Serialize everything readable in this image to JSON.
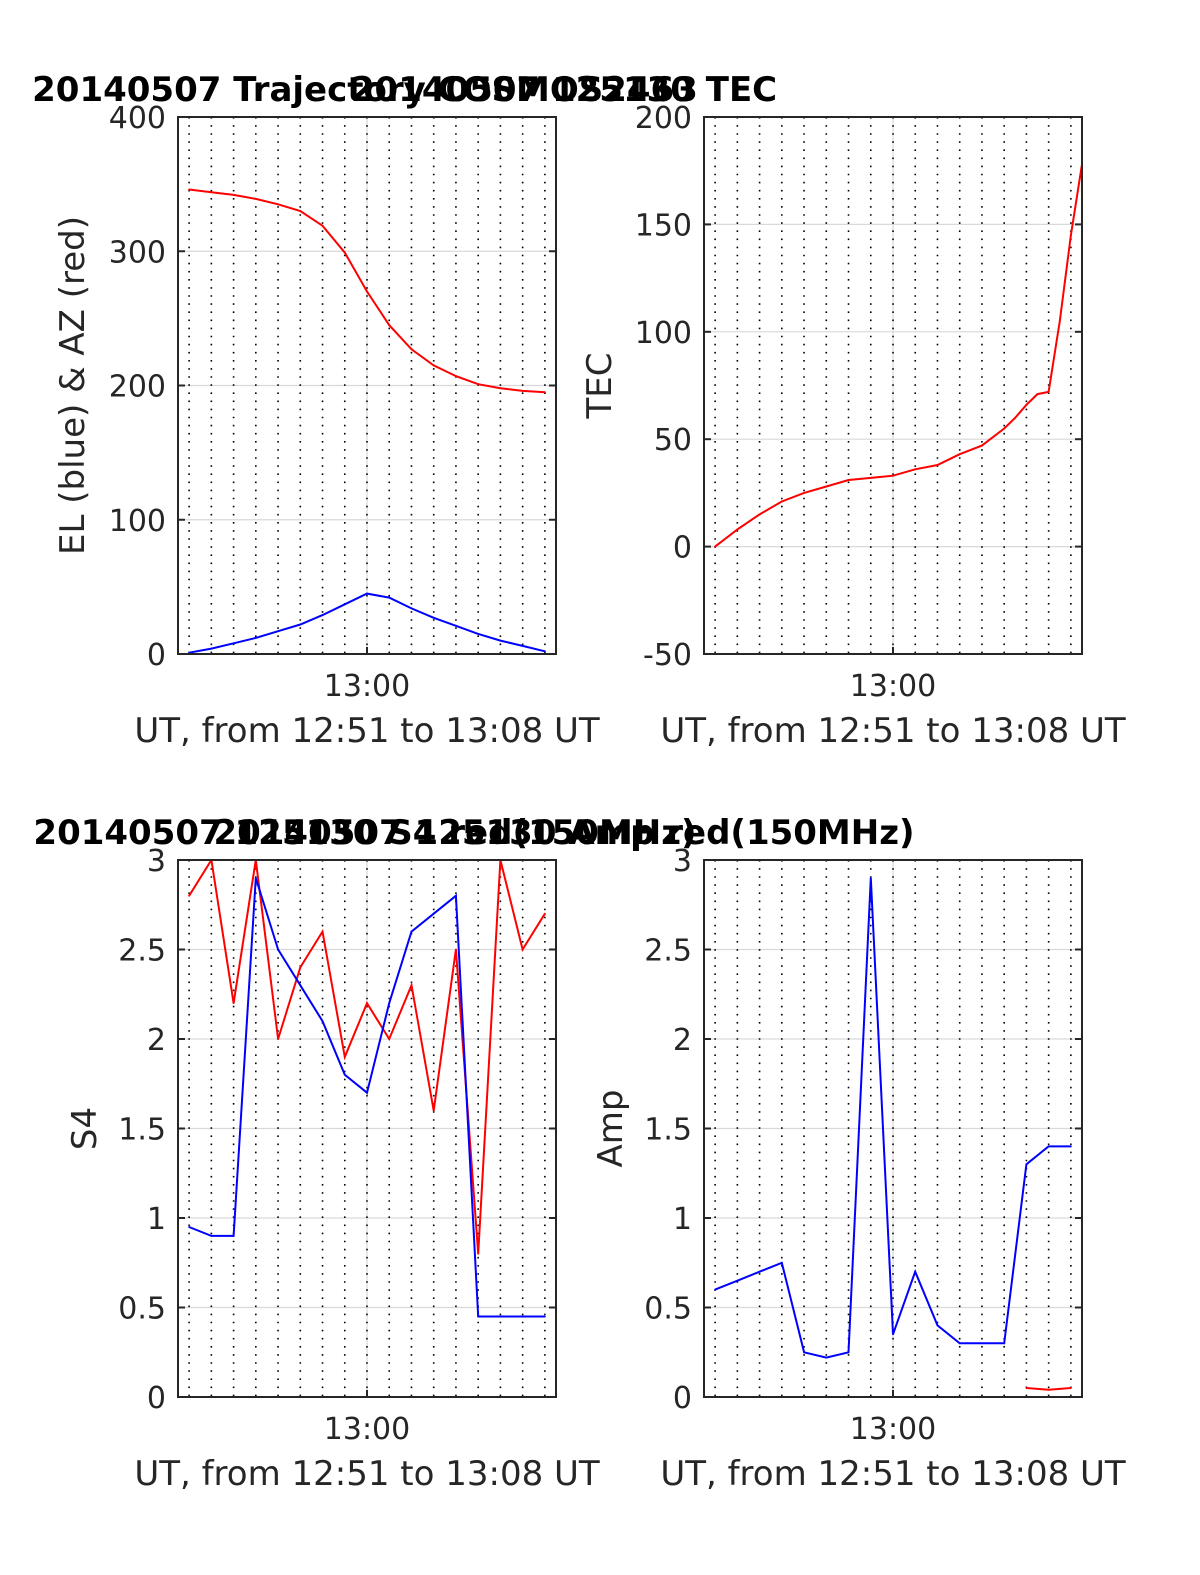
{
  "colors": {
    "el": "#0000ff",
    "az": "#ff0000",
    "grid": "#d9d9d9",
    "axis": "#262626",
    "dots": "#000000",
    "text": "#262626"
  },
  "chart_data": [
    {
      "type": "line",
      "title": "20140507 Trajectory COSMOS2463",
      "ylabel": "EL (blue) & AZ (red)",
      "xlabel": "UT, from 12:51 to 13:08 UT",
      "xlim": [
        "12:51:30",
        "13:08:30"
      ],
      "ylim": [
        0,
        400
      ],
      "yticks": [
        "0",
        "100",
        "200",
        "300",
        "400"
      ],
      "xtick_labels": [
        "13:00"
      ],
      "grid": true,
      "series": [
        {
          "color": "#0000ff",
          "x": [
            "12:52:00",
            "12:53:00",
            "12:54:00",
            "12:55:00",
            "12:56:00",
            "12:57:00",
            "12:58:00",
            "12:59:00",
            "13:00:00",
            "13:01:00",
            "13:02:00",
            "13:03:00",
            "13:04:00",
            "13:05:00",
            "13:06:00",
            "13:07:00",
            "13:08:00"
          ],
          "y": [
            1,
            4,
            8,
            12,
            17,
            22,
            29,
            37,
            45,
            42,
            34,
            27,
            21,
            15,
            10,
            6,
            2
          ]
        },
        {
          "color": "#ff0000",
          "x": [
            "12:52:00",
            "12:53:00",
            "12:54:00",
            "12:55:00",
            "12:56:00",
            "12:57:00",
            "12:58:00",
            "12:59:00",
            "13:00:00",
            "13:01:00",
            "13:02:00",
            "13:03:00",
            "13:04:00",
            "13:05:00",
            "13:06:00",
            "13:07:00",
            "13:08:00"
          ],
          "y": [
            346,
            344,
            342,
            339,
            335,
            330,
            319,
            299,
            270,
            245,
            227,
            215,
            207,
            201,
            198,
            196,
            195
          ]
        }
      ]
    },
    {
      "type": "line",
      "title": "20140507 125130 TEC",
      "ylabel": "TEC",
      "xlabel": "UT, from 12:51 to 13:08 UT",
      "xlim": [
        "12:51:30",
        "13:08:30"
      ],
      "ylim": [
        -50,
        200
      ],
      "yticks": [
        "-50",
        "0",
        "50",
        "100",
        "150",
        "200"
      ],
      "xtick_labels": [
        "13:00"
      ],
      "grid": true,
      "series": [
        {
          "color": "#ff0000",
          "x": [
            "12:52:00",
            "12:53:00",
            "12:54:00",
            "12:55:00",
            "12:56:00",
            "12:57:00",
            "12:58:00",
            "12:59:00",
            "13:00:00",
            "13:01:00",
            "13:02:00",
            "13:03:00",
            "13:04:00",
            "13:05:00",
            "13:05:30",
            "13:06:00",
            "13:06:30",
            "13:07:00",
            "13:07:30",
            "13:08:00",
            "13:08:30"
          ],
          "y": [
            0,
            8,
            15,
            21,
            25,
            28,
            31,
            32,
            33,
            36,
            38,
            43,
            47,
            55,
            60,
            66,
            71,
            72,
            105,
            145,
            178
          ]
        }
      ]
    },
    {
      "type": "line",
      "title": "20140507 125130 S4 red(150MHz)",
      "ylabel": "S4",
      "xlabel": "UT, from 12:51 to 13:08 UT",
      "xlim": [
        "12:51:30",
        "13:08:30"
      ],
      "ylim": [
        0,
        3
      ],
      "yticks": [
        "0",
        "0.5",
        "1",
        "1.5",
        "2",
        "2.5",
        "3"
      ],
      "xtick_labels": [
        "13:00"
      ],
      "grid": true,
      "series": [
        {
          "color": "#ff0000",
          "x": [
            "12:52:00",
            "12:53:00",
            "12:54:00",
            "12:55:00",
            "12:56:00",
            "12:57:00",
            "12:58:00",
            "12:59:00",
            "13:00:00",
            "13:01:00",
            "13:02:00",
            "13:03:00",
            "13:04:00",
            "13:05:00",
            "13:06:00",
            "13:07:00",
            "13:08:00"
          ],
          "y": [
            2.8,
            3.0,
            2.2,
            3.0,
            2.0,
            2.4,
            2.6,
            1.9,
            2.2,
            2.0,
            2.3,
            1.6,
            2.5,
            0.8,
            3.0,
            2.5,
            2.7
          ]
        },
        {
          "color": "#0000ff",
          "x": [
            "12:52:00",
            "12:53:00",
            "12:54:00",
            "12:55:00",
            "12:56:00",
            "12:57:00",
            "12:58:00",
            "12:59:00",
            "13:00:00",
            "13:01:00",
            "13:02:00",
            "13:03:00",
            "13:04:00",
            "13:05:00",
            "13:06:00",
            "13:07:00",
            "13:08:00"
          ],
          "y": [
            0.95,
            0.9,
            0.9,
            2.9,
            2.5,
            2.3,
            2.1,
            1.8,
            1.7,
            2.2,
            2.6,
            2.7,
            2.8,
            0.45,
            0.45,
            0.45,
            0.45
          ]
        }
      ]
    },
    {
      "type": "line",
      "title": "20140507 125130 Amp red(150MHz)",
      "ylabel": "Amp",
      "xlabel": "UT, from 12:51 to 13:08 UT",
      "xlim": [
        "12:51:30",
        "13:08:30"
      ],
      "ylim": [
        0,
        3
      ],
      "yticks": [
        "0",
        "0.5",
        "1",
        "1.5",
        "2",
        "2.5",
        "3"
      ],
      "xtick_labels": [
        "13:00"
      ],
      "grid": true,
      "series": [
        {
          "color": "#0000ff",
          "x": [
            "12:52:00",
            "12:53:00",
            "12:54:00",
            "12:55:00",
            "12:56:00",
            "12:57:00",
            "12:58:00",
            "12:59:00",
            "13:00:00",
            "13:01:00",
            "13:02:00",
            "13:03:00",
            "13:04:00",
            "13:05:00",
            "13:06:00",
            "13:07:00",
            "13:08:00"
          ],
          "y": [
            0.6,
            0.65,
            0.7,
            0.75,
            0.25,
            0.22,
            0.25,
            2.9,
            0.35,
            0.7,
            0.4,
            0.3,
            0.3,
            0.3,
            1.3,
            1.4,
            1.4
          ]
        },
        {
          "color": "#ff0000",
          "x": [
            "13:06:00",
            "13:07:00",
            "13:08:00"
          ],
          "y": [
            0.05,
            0.04,
            0.05
          ]
        }
      ]
    }
  ]
}
